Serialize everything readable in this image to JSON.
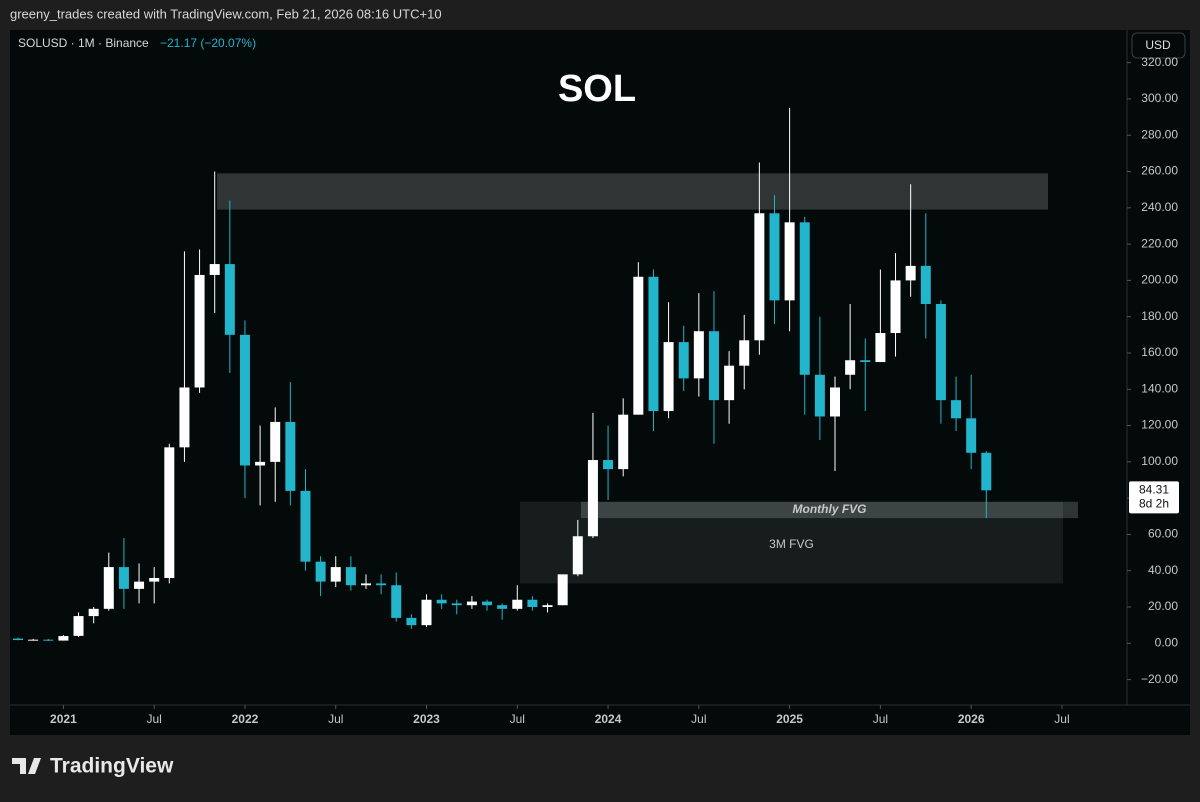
{
  "header": "greeny_trades created with TradingView.com, Feb 21, 2026 08:16 UTC+10",
  "footer": "TradingView",
  "chart_data": {
    "type": "candlestick",
    "title": "SOL",
    "symbol": "SOLUSD · 1M · Binance",
    "change": "−21.17 (−20.07%)",
    "currency": "USD",
    "countdown": "8d 2h",
    "up_color": "#ffffff",
    "down_color": "#22b5cc",
    "open": [
      2.6,
      1.8,
      2.0,
      1.5,
      4.1,
      15,
      19,
      42,
      30,
      34,
      36,
      108,
      141,
      203,
      209,
      170,
      98,
      100,
      122,
      84,
      45,
      34,
      42,
      32,
      33,
      32,
      14,
      10,
      24,
      22,
      21,
      23,
      21,
      19,
      24,
      20,
      21,
      38,
      59,
      101,
      96,
      126,
      202,
      128,
      166,
      146,
      172,
      134,
      153,
      167,
      237,
      189,
      232,
      148,
      125,
      148,
      156,
      155,
      171,
      200,
      208,
      187,
      134,
      124,
      105
    ],
    "high": [
      3.1,
      2.4,
      2.4,
      4.5,
      17,
      20,
      50,
      58,
      44,
      42,
      110,
      216,
      217,
      260,
      244,
      178,
      120,
      130,
      144,
      96,
      48,
      48,
      48,
      38,
      38,
      39,
      16,
      27,
      27,
      24,
      26,
      24,
      22,
      32,
      26,
      22,
      38,
      68,
      127,
      120,
      135,
      210,
      206,
      188,
      175,
      193,
      194,
      161,
      181,
      265,
      247,
      295,
      235,
      180,
      147,
      187,
      168,
      206,
      215,
      253,
      237,
      189,
      147,
      148,
      106
    ],
    "low": [
      1.7,
      1.5,
      1.3,
      1.5,
      3.5,
      11,
      18,
      19,
      22,
      22,
      33,
      100,
      138,
      182,
      149,
      80,
      76,
      78,
      76,
      40,
      26,
      31,
      29,
      30,
      27,
      12,
      8,
      9,
      19,
      16,
      19,
      18,
      13,
      18,
      18,
      17,
      21,
      37,
      58,
      79,
      92,
      126,
      117,
      124,
      139,
      136,
      110,
      121,
      140,
      159,
      176,
      172,
      126,
      112,
      95,
      140,
      128,
      155,
      158,
      191,
      168,
      121,
      117,
      96,
      69
    ],
    "close": [
      1.8,
      2.0,
      1.5,
      4.0,
      15,
      19,
      42,
      30,
      34,
      36,
      108,
      141,
      203,
      209,
      170,
      98,
      100,
      122,
      84,
      45,
      34,
      42,
      32,
      33,
      32,
      14,
      10,
      24,
      22,
      21,
      23,
      21,
      19,
      24,
      20,
      21,
      38,
      59,
      101,
      96,
      126,
      202,
      128,
      166,
      146,
      172,
      134,
      153,
      167,
      237,
      189,
      232,
      148,
      125,
      141,
      156,
      155,
      171,
      200,
      208,
      187,
      134,
      124,
      105,
      84.31
    ],
    "xlim": [
      -0.53,
      73.3
    ],
    "xticks": [
      {
        "value": 3,
        "label": "2021"
      },
      {
        "value": 9,
        "label": "Jul"
      },
      {
        "value": 15,
        "label": "2022"
      },
      {
        "value": 21,
        "label": "Jul"
      },
      {
        "value": 27,
        "label": "2023"
      },
      {
        "value": 33,
        "label": "Jul"
      },
      {
        "value": 39,
        "label": "2024"
      },
      {
        "value": 45,
        "label": "Jul"
      },
      {
        "value": 51,
        "label": "2025"
      },
      {
        "value": 57,
        "label": "Jul"
      },
      {
        "value": 63,
        "label": "2026"
      },
      {
        "value": 69,
        "label": "Jul"
      }
    ],
    "ylim": [
      -34,
      338
    ],
    "yticks": [
      {
        "value": -20,
        "label": "−20.00"
      },
      {
        "value": 0,
        "label": "0.00"
      },
      {
        "value": 20,
        "label": "20.00"
      },
      {
        "value": 40,
        "label": "40.00"
      },
      {
        "value": 60,
        "label": "60.00"
      },
      {
        "value": 80,
        "label": "80.00"
      },
      {
        "value": 100,
        "label": "100.00"
      },
      {
        "value": 120,
        "label": "120.00"
      },
      {
        "value": 140,
        "label": "140.00"
      },
      {
        "value": 160,
        "label": "160.00"
      },
      {
        "value": 180,
        "label": "180.00"
      },
      {
        "value": 200,
        "label": "200.00"
      },
      {
        "value": 220,
        "label": "220.00"
      },
      {
        "value": 240,
        "label": "240.00"
      },
      {
        "value": 260,
        "label": "260.00"
      },
      {
        "value": 280,
        "label": "280.00"
      },
      {
        "value": 300,
        "label": "300.00"
      },
      {
        "value": 320,
        "label": "320.00"
      }
    ],
    "zones": [
      {
        "ylim": [
          239,
          259
        ]
      },
      {
        "label": "3M FVG",
        "ylim": [
          33,
          78
        ]
      },
      {
        "label": "Monthly FVG",
        "ylim": [
          69,
          78
        ]
      }
    ]
  }
}
